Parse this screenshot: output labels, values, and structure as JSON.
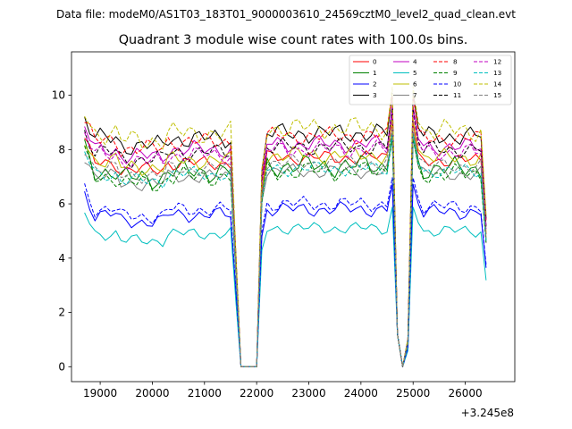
{
  "figure": {
    "suptitle": "Data file: modeM0/AS1T03_183T01_9000003610_24569cztM0_level2_quad_clean.evt"
  },
  "chart_data": {
    "type": "line",
    "title": "Quadrant 3 module wise count rates with 100.0s bins.",
    "xlabel": "",
    "ylabel": "",
    "x_offset_label": "+3.245e8",
    "xlim": [
      18450,
      26950
    ],
    "ylim": [
      -0.55,
      11.6
    ],
    "x_ticks": [
      19000,
      20000,
      21000,
      22000,
      23000,
      24000,
      25000,
      26000
    ],
    "y_ticks": [
      0,
      2,
      4,
      6,
      8,
      10
    ],
    "legend_location": "upper right",
    "segment_times": {
      "seg1": [
        18700,
        18800,
        18900,
        19000,
        19100,
        19200,
        19300,
        19400,
        19500,
        19600,
        19700,
        19800,
        19900,
        20000,
        20100,
        20200,
        20300,
        20400,
        20500,
        20600,
        20700,
        20800,
        20900,
        21000,
        21100,
        21200,
        21300,
        21400,
        21500
      ],
      "seg2": [
        22100,
        22200,
        22300,
        22400,
        22500,
        22600,
        22700,
        22800,
        22900,
        23000,
        23100,
        23200,
        23300,
        23400,
        23500,
        23600,
        23700,
        23800,
        23900,
        24000,
        24100,
        24200,
        24300,
        24400,
        24500
      ],
      "seg3": [
        24900,
        25000,
        25100,
        25200,
        25300,
        25400,
        25500,
        25600,
        25700,
        25800,
        25900,
        26000,
        26100,
        26200,
        26300,
        26400
      ]
    },
    "series": [
      {
        "name": "0",
        "color": "#ff0000",
        "dash": "solid",
        "base": 7.5,
        "amp": 0.3,
        "ph": 0.3,
        "dip": 6.5
      },
      {
        "name": "1",
        "color": "#008000",
        "dash": "solid",
        "base": 7.2,
        "amp": 0.45,
        "ph": 1.1,
        "dip": 6.2
      },
      {
        "name": "2",
        "color": "#0000ff",
        "dash": "solid",
        "base": 5.6,
        "amp": 0.3,
        "ph": 2.0,
        "dip": 4.8
      },
      {
        "name": "3",
        "color": "#000000",
        "dash": "solid",
        "base": 8.4,
        "amp": 0.4,
        "ph": 2.7,
        "dip": 7.2
      },
      {
        "name": "4",
        "color": "#c000c0",
        "dash": "solid",
        "base": 8.0,
        "amp": 0.35,
        "ph": 3.3,
        "dip": 6.9
      },
      {
        "name": "5",
        "color": "#00bfbf",
        "dash": "solid",
        "base": 4.9,
        "amp": 0.25,
        "ph": 4.0,
        "dip": 4.3
      },
      {
        "name": "6",
        "color": "#bfbf00",
        "dash": "solid",
        "base": 7.6,
        "amp": 0.35,
        "ph": 4.6,
        "dip": 6.6
      },
      {
        "name": "7",
        "color": "#808080",
        "dash": "solid",
        "base": 7.0,
        "amp": 0.3,
        "ph": 5.2,
        "dip": 6.1
      },
      {
        "name": "8",
        "color": "#ff0000",
        "dash": "dashed",
        "base": 8.3,
        "amp": 0.35,
        "ph": 5.9,
        "dip": 7.1
      },
      {
        "name": "9",
        "color": "#008000",
        "dash": "dashed",
        "base": 7.0,
        "amp": 0.4,
        "ph": 0.8,
        "dip": 6.0
      },
      {
        "name": "10",
        "color": "#0000ff",
        "dash": "dashed",
        "base": 5.8,
        "amp": 0.3,
        "ph": 1.6,
        "dip": 5.0
      },
      {
        "name": "11",
        "color": "#000000",
        "dash": "dashed",
        "base": 7.9,
        "amp": 0.35,
        "ph": 2.3,
        "dip": 6.8
      },
      {
        "name": "12",
        "color": "#c000c0",
        "dash": "dashed",
        "base": 7.8,
        "amp": 0.35,
        "ph": 3.0,
        "dip": 6.7
      },
      {
        "name": "13",
        "color": "#00bfbf",
        "dash": "dashed",
        "base": 7.1,
        "amp": 0.3,
        "ph": 3.7,
        "dip": 6.2
      },
      {
        "name": "14",
        "color": "#bfbf00",
        "dash": "dashed",
        "base": 8.6,
        "amp": 0.45,
        "ph": 4.3,
        "dip": 7.3
      },
      {
        "name": "15",
        "color": "#808080",
        "dash": "dashed",
        "base": 7.3,
        "amp": 0.3,
        "ph": 5.0,
        "dip": 6.3
      }
    ]
  }
}
